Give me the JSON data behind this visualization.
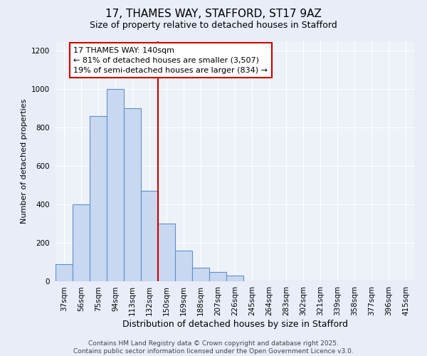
{
  "title_line1": "17, THAMES WAY, STAFFORD, ST17 9AZ",
  "title_line2": "Size of property relative to detached houses in Stafford",
  "xlabel": "Distribution of detached houses by size in Stafford",
  "ylabel": "Number of detached properties",
  "categories": [
    "37sqm",
    "56sqm",
    "75sqm",
    "94sqm",
    "113sqm",
    "132sqm",
    "150sqm",
    "169sqm",
    "188sqm",
    "207sqm",
    "226sqm",
    "245sqm",
    "264sqm",
    "283sqm",
    "302sqm",
    "321sqm",
    "339sqm",
    "358sqm",
    "377sqm",
    "396sqm",
    "415sqm"
  ],
  "values": [
    90,
    400,
    860,
    1000,
    900,
    470,
    300,
    160,
    70,
    50,
    30,
    0,
    0,
    0,
    0,
    0,
    0,
    0,
    0,
    0,
    0
  ],
  "bar_color": "#c8d8f0",
  "bar_edge_color": "#6090cc",
  "vline_color": "#cc0000",
  "vline_position": 5.5,
  "annotation_title": "17 THAMES WAY: 140sqm",
  "annotation_line1": "← 81% of detached houses are smaller (3,507)",
  "annotation_line2": "19% of semi-detached houses are larger (834) →",
  "ylim_max": 1250,
  "yticks": [
    0,
    200,
    400,
    600,
    800,
    1000,
    1200
  ],
  "bg_color": "#e8edf8",
  "plot_bg_color": "#edf1f8",
  "grid_color": "#ffffff",
  "footer_line1": "Contains HM Land Registry data © Crown copyright and database right 2025.",
  "footer_line2": "Contains public sector information licensed under the Open Government Licence v3.0.",
  "title_fontsize": 11,
  "subtitle_fontsize": 9,
  "ylabel_fontsize": 8,
  "xlabel_fontsize": 9,
  "tick_fontsize": 7.5,
  "footer_fontsize": 6.5,
  "ann_fontsize": 8
}
